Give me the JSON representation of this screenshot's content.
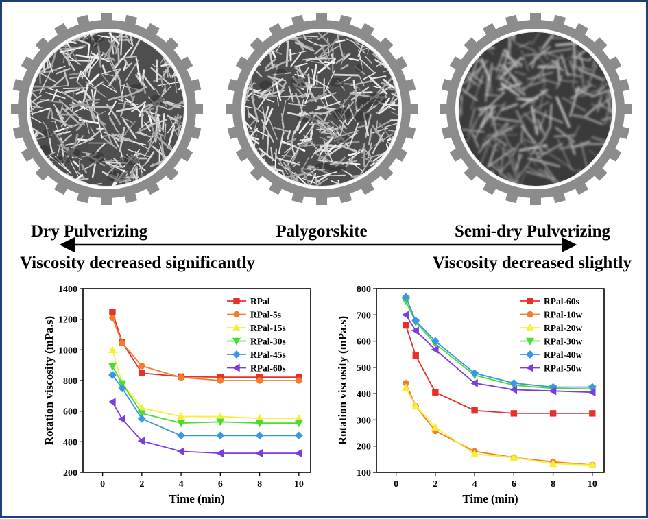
{
  "captions": {
    "left": "Dry Pulverizing",
    "center": "Palygorskite",
    "right": "Semi-dry Pulverizing",
    "left_effect": "Viscosity decreased significantly",
    "right_effect": "Viscosity decreased slightly"
  },
  "gears": [
    {
      "name": "gear-dry-pulverizing",
      "texture": "sharp-fiber"
    },
    {
      "name": "gear-palygorskite",
      "texture": "sharp-fiber"
    },
    {
      "name": "gear-semi-dry-pulverizing",
      "texture": "blurred-fiber"
    }
  ],
  "colors": {
    "frame": "#1f3f77",
    "gear": "#8c8c8c",
    "red": "#e8302b",
    "orange": "#f07f2c",
    "yellow": "#f4f03a",
    "green": "#4bdc33",
    "blue": "#3b97e6",
    "purple": "#7a3ee0"
  },
  "chart_data": [
    {
      "type": "line",
      "xlabel": "Time (min)",
      "ylabel": "Rotation viscosity (mPa.s)",
      "xlim": [
        -1,
        10.6
      ],
      "ylim": [
        200,
        1400
      ],
      "xticks": [
        0,
        2,
        4,
        6,
        8,
        10
      ],
      "yticks": [
        200,
        400,
        600,
        800,
        1000,
        1200,
        1400
      ],
      "legend_position": "top-right",
      "x": [
        0.5,
        1,
        2,
        4,
        6,
        8,
        10
      ],
      "series": [
        {
          "name": "RPal",
          "marker": "square",
          "color": "#e8302b",
          "values": [
            1248,
            1050,
            848,
            825,
            822,
            822,
            822
          ]
        },
        {
          "name": "RPal-5s",
          "marker": "circle",
          "color": "#f07f2c",
          "values": [
            1210,
            1045,
            895,
            820,
            800,
            800,
            800
          ]
        },
        {
          "name": "RPal-15s",
          "marker": "triangle-up",
          "color": "#f4f03a",
          "values": [
            1000,
            780,
            620,
            565,
            565,
            553,
            553
          ]
        },
        {
          "name": "RPal-30s",
          "marker": "triangle-down",
          "color": "#4bdc33",
          "values": [
            893,
            780,
            585,
            522,
            530,
            522,
            522
          ]
        },
        {
          "name": "RPal-45s",
          "marker": "diamond",
          "color": "#3b97e6",
          "values": [
            836,
            750,
            550,
            440,
            440,
            440,
            440
          ]
        },
        {
          "name": "RPal-60s",
          "marker": "triangle-left",
          "color": "#7a3ee0",
          "values": [
            660,
            548,
            405,
            337,
            325,
            325,
            325
          ]
        }
      ]
    },
    {
      "type": "line",
      "xlabel": "Time (min)",
      "ylabel": "Rotation viscosity (mPa.s)",
      "xlim": [
        -1,
        10.6
      ],
      "ylim": [
        100,
        800
      ],
      "xticks": [
        0,
        2,
        4,
        6,
        8,
        10
      ],
      "yticks": [
        100,
        200,
        300,
        400,
        500,
        600,
        700,
        800
      ],
      "legend_position": "top-right",
      "x": [
        0.5,
        1,
        2,
        4,
        6,
        8,
        10
      ],
      "series": [
        {
          "name": "RPal-60s",
          "marker": "square",
          "color": "#e8302b",
          "values": [
            660,
            545,
            405,
            336,
            325,
            325,
            325
          ]
        },
        {
          "name": "RPal-10w",
          "marker": "circle",
          "color": "#f07f2c",
          "values": [
            440,
            352,
            258,
            180,
            157,
            140,
            128
          ]
        },
        {
          "name": "RPal-20w",
          "marker": "triangle-up",
          "color": "#f4f03a",
          "values": [
            422,
            352,
            272,
            170,
            157,
            133,
            128
          ]
        },
        {
          "name": "RPal-30w",
          "marker": "triangle-down",
          "color": "#4bdc33",
          "values": [
            752,
            672,
            590,
            470,
            432,
            420,
            418
          ]
        },
        {
          "name": "RPal-40w",
          "marker": "diamond",
          "color": "#3b97e6",
          "values": [
            768,
            678,
            600,
            478,
            440,
            425,
            425
          ]
        },
        {
          "name": "RPal-50w",
          "marker": "triangle-left",
          "color": "#7a3ee0",
          "values": [
            700,
            640,
            568,
            440,
            415,
            410,
            405
          ]
        }
      ]
    }
  ]
}
